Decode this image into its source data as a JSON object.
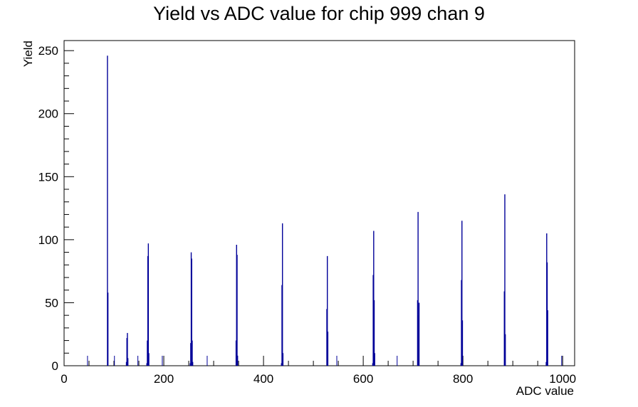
{
  "chart_data": {
    "type": "histogram",
    "title": "Yield vs ADC value for chip 999 chan 9",
    "xlabel": "ADC value",
    "ylabel": "Yield",
    "xlim": [
      0,
      1024
    ],
    "ylim": [
      0,
      258
    ],
    "x_ticks": [
      0,
      200,
      400,
      600,
      800,
      1000
    ],
    "y_ticks": [
      0,
      50,
      100,
      150,
      200,
      250
    ],
    "line_color": "#000099",
    "bins": [
      {
        "x": 47,
        "y": 0
      },
      {
        "x": 87,
        "y": 246
      },
      {
        "x": 88,
        "y": 58
      },
      {
        "x": 101,
        "y": 0
      },
      {
        "x": 125,
        "y": 3
      },
      {
        "x": 126,
        "y": 22
      },
      {
        "x": 127,
        "y": 26
      },
      {
        "x": 128,
        "y": 6
      },
      {
        "x": 148,
        "y": 0
      },
      {
        "x": 166,
        "y": 2
      },
      {
        "x": 167,
        "y": 20
      },
      {
        "x": 168,
        "y": 87
      },
      {
        "x": 169,
        "y": 97
      },
      {
        "x": 170,
        "y": 10
      },
      {
        "x": 197,
        "y": 0
      },
      {
        "x": 253,
        "y": 2
      },
      {
        "x": 254,
        "y": 18
      },
      {
        "x": 255,
        "y": 90
      },
      {
        "x": 256,
        "y": 85
      },
      {
        "x": 257,
        "y": 20
      },
      {
        "x": 258,
        "y": 3
      },
      {
        "x": 287,
        "y": 0
      },
      {
        "x": 345,
        "y": 20
      },
      {
        "x": 346,
        "y": 96
      },
      {
        "x": 347,
        "y": 88
      },
      {
        "x": 348,
        "y": 8
      },
      {
        "x": 436,
        "y": 2
      },
      {
        "x": 437,
        "y": 64
      },
      {
        "x": 438,
        "y": 113
      },
      {
        "x": 439,
        "y": 10
      },
      {
        "x": 527,
        "y": 45
      },
      {
        "x": 528,
        "y": 87
      },
      {
        "x": 529,
        "y": 27
      },
      {
        "x": 547,
        "y": 0
      },
      {
        "x": 619,
        "y": 2
      },
      {
        "x": 620,
        "y": 72
      },
      {
        "x": 621,
        "y": 107
      },
      {
        "x": 622,
        "y": 52
      },
      {
        "x": 623,
        "y": 10
      },
      {
        "x": 668,
        "y": 0
      },
      {
        "x": 709,
        "y": 52
      },
      {
        "x": 710,
        "y": 122
      },
      {
        "x": 711,
        "y": 40
      },
      {
        "x": 712,
        "y": 50
      },
      {
        "x": 796,
        "y": 2
      },
      {
        "x": 797,
        "y": 68
      },
      {
        "x": 798,
        "y": 115
      },
      {
        "x": 799,
        "y": 36
      },
      {
        "x": 883,
        "y": 59
      },
      {
        "x": 884,
        "y": 136
      },
      {
        "x": 885,
        "y": 25
      },
      {
        "x": 967,
        "y": 3
      },
      {
        "x": 968,
        "y": 105
      },
      {
        "x": 969,
        "y": 82
      },
      {
        "x": 970,
        "y": 44
      },
      {
        "x": 998,
        "y": 0
      }
    ]
  }
}
